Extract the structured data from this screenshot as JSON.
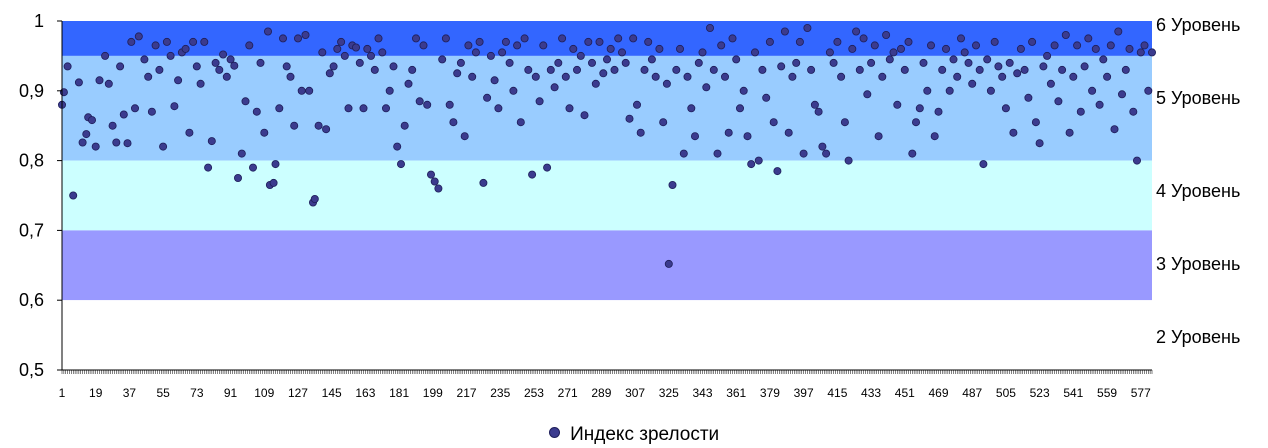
{
  "chart_data": {
    "type": "scatter",
    "title": "",
    "xlabel": "",
    "ylabel": "",
    "ylim": [
      0.5,
      1
    ],
    "xlim": [
      1,
      583
    ],
    "y_ticks": [
      "0,5",
      "0,6",
      "0,7",
      "0,8",
      "0,9",
      "1"
    ],
    "x_ticks": [
      "1",
      "19",
      "37",
      "55",
      "73",
      "91",
      "109",
      "127",
      "145",
      "163",
      "181",
      "199",
      "217",
      "235",
      "253",
      "271",
      "289",
      "307",
      "325",
      "343",
      "361",
      "379",
      "397",
      "415",
      "433",
      "451",
      "469",
      "487",
      "505",
      "523",
      "541",
      "559",
      "577"
    ],
    "bands": [
      {
        "label": "6 Уровень",
        "from": 0.95,
        "to": 1.0,
        "color": "#3366ff"
      },
      {
        "label": "5 Уровень",
        "from": 0.8,
        "to": 0.95,
        "color": "#99ccff"
      },
      {
        "label": "4 Уровень",
        "from": 0.7,
        "to": 0.8,
        "color": "#ccffff"
      },
      {
        "label": "3 Уровень",
        "from": 0.6,
        "to": 0.7,
        "color": "#9999ff"
      },
      {
        "label": "2 Уровень",
        "from": 0.5,
        "to": 0.6,
        "color": "#ffffff"
      }
    ],
    "grid": false,
    "legend_position": "bottom",
    "series": [
      {
        "name": "Индекс зрелости",
        "color": "#3b3b8e",
        "points": [
          [
            1,
            0.88
          ],
          [
            2,
            0.898
          ],
          [
            4,
            0.935
          ],
          [
            7,
            0.75
          ],
          [
            10,
            0.912
          ],
          [
            12,
            0.826
          ],
          [
            14,
            0.838
          ],
          [
            15,
            0.862
          ],
          [
            17,
            0.858
          ],
          [
            19,
            0.82
          ],
          [
            21,
            0.915
          ],
          [
            24,
            0.95
          ],
          [
            26,
            0.91
          ],
          [
            28,
            0.85
          ],
          [
            30,
            0.826
          ],
          [
            32,
            0.935
          ],
          [
            34,
            0.866
          ],
          [
            36,
            0.825
          ],
          [
            38,
            0.97
          ],
          [
            40,
            0.875
          ],
          [
            42,
            0.978
          ],
          [
            45,
            0.945
          ],
          [
            47,
            0.92
          ],
          [
            49,
            0.87
          ],
          [
            51,
            0.965
          ],
          [
            53,
            0.93
          ],
          [
            55,
            0.82
          ],
          [
            57,
            0.97
          ],
          [
            59,
            0.95
          ],
          [
            61,
            0.878
          ],
          [
            63,
            0.915
          ],
          [
            65,
            0.955
          ],
          [
            67,
            0.96
          ],
          [
            69,
            0.84
          ],
          [
            71,
            0.97
          ],
          [
            73,
            0.935
          ],
          [
            75,
            0.91
          ],
          [
            77,
            0.97
          ],
          [
            79,
            0.79
          ],
          [
            81,
            0.828
          ],
          [
            83,
            0.94
          ],
          [
            85,
            0.93
          ],
          [
            87,
            0.952
          ],
          [
            89,
            0.92
          ],
          [
            91,
            0.945
          ],
          [
            93,
            0.936
          ],
          [
            95,
            0.775
          ],
          [
            97,
            0.81
          ],
          [
            99,
            0.885
          ],
          [
            101,
            0.965
          ],
          [
            103,
            0.79
          ],
          [
            105,
            0.87
          ],
          [
            107,
            0.94
          ],
          [
            109,
            0.84
          ],
          [
            111,
            0.985
          ],
          [
            112,
            0.765
          ],
          [
            114,
            0.768
          ],
          [
            115,
            0.795
          ],
          [
            117,
            0.875
          ],
          [
            119,
            0.975
          ],
          [
            121,
            0.935
          ],
          [
            123,
            0.92
          ],
          [
            125,
            0.85
          ],
          [
            127,
            0.975
          ],
          [
            129,
            0.9
          ],
          [
            131,
            0.98
          ],
          [
            133,
            0.9
          ],
          [
            135,
            0.74
          ],
          [
            136,
            0.745
          ],
          [
            138,
            0.85
          ],
          [
            140,
            0.955
          ],
          [
            142,
            0.845
          ],
          [
            144,
            0.925
          ],
          [
            146,
            0.935
          ],
          [
            148,
            0.96
          ],
          [
            150,
            0.97
          ],
          [
            152,
            0.95
          ],
          [
            154,
            0.875
          ],
          [
            156,
            0.965
          ],
          [
            158,
            0.962
          ],
          [
            160,
            0.94
          ],
          [
            162,
            0.875
          ],
          [
            164,
            0.96
          ],
          [
            166,
            0.95
          ],
          [
            168,
            0.93
          ],
          [
            170,
            0.975
          ],
          [
            172,
            0.955
          ],
          [
            174,
            0.875
          ],
          [
            176,
            0.9
          ],
          [
            178,
            0.935
          ],
          [
            180,
            0.82
          ],
          [
            182,
            0.795
          ],
          [
            184,
            0.85
          ],
          [
            186,
            0.91
          ],
          [
            188,
            0.93
          ],
          [
            190,
            0.975
          ],
          [
            192,
            0.885
          ],
          [
            194,
            0.965
          ],
          [
            196,
            0.88
          ],
          [
            198,
            0.78
          ],
          [
            200,
            0.77
          ],
          [
            202,
            0.76
          ],
          [
            204,
            0.945
          ],
          [
            206,
            0.975
          ],
          [
            208,
            0.88
          ],
          [
            210,
            0.855
          ],
          [
            212,
            0.925
          ],
          [
            214,
            0.94
          ],
          [
            216,
            0.835
          ],
          [
            218,
            0.965
          ],
          [
            220,
            0.92
          ],
          [
            222,
            0.955
          ],
          [
            224,
            0.97
          ],
          [
            226,
            0.768
          ],
          [
            228,
            0.89
          ],
          [
            230,
            0.95
          ],
          [
            232,
            0.915
          ],
          [
            234,
            0.875
          ],
          [
            236,
            0.955
          ],
          [
            238,
            0.97
          ],
          [
            240,
            0.94
          ],
          [
            242,
            0.9
          ],
          [
            244,
            0.965
          ],
          [
            246,
            0.855
          ],
          [
            248,
            0.975
          ],
          [
            250,
            0.93
          ],
          [
            252,
            0.78
          ],
          [
            254,
            0.92
          ],
          [
            256,
            0.885
          ],
          [
            258,
            0.965
          ],
          [
            260,
            0.79
          ],
          [
            262,
            0.93
          ],
          [
            264,
            0.905
          ],
          [
            266,
            0.94
          ],
          [
            268,
            0.975
          ],
          [
            270,
            0.92
          ],
          [
            272,
            0.875
          ],
          [
            274,
            0.96
          ],
          [
            276,
            0.93
          ],
          [
            278,
            0.95
          ],
          [
            280,
            0.865
          ],
          [
            282,
            0.97
          ],
          [
            284,
            0.94
          ],
          [
            286,
            0.91
          ],
          [
            288,
            0.97
          ],
          [
            290,
            0.925
          ],
          [
            292,
            0.945
          ],
          [
            294,
            0.96
          ],
          [
            296,
            0.93
          ],
          [
            298,
            0.975
          ],
          [
            300,
            0.955
          ],
          [
            302,
            0.94
          ],
          [
            304,
            0.86
          ],
          [
            306,
            0.975
          ],
          [
            308,
            0.88
          ],
          [
            310,
            0.84
          ],
          [
            312,
            0.93
          ],
          [
            314,
            0.97
          ],
          [
            316,
            0.945
          ],
          [
            318,
            0.92
          ],
          [
            320,
            0.96
          ],
          [
            322,
            0.855
          ],
          [
            324,
            0.91
          ],
          [
            325,
            0.652
          ],
          [
            327,
            0.765
          ],
          [
            329,
            0.93
          ],
          [
            331,
            0.96
          ],
          [
            333,
            0.81
          ],
          [
            335,
            0.92
          ],
          [
            337,
            0.875
          ],
          [
            339,
            0.835
          ],
          [
            341,
            0.94
          ],
          [
            343,
            0.955
          ],
          [
            345,
            0.905
          ],
          [
            347,
            0.99
          ],
          [
            349,
            0.93
          ],
          [
            351,
            0.81
          ],
          [
            353,
            0.965
          ],
          [
            355,
            0.92
          ],
          [
            357,
            0.84
          ],
          [
            359,
            0.975
          ],
          [
            361,
            0.945
          ],
          [
            363,
            0.875
          ],
          [
            365,
            0.9
          ],
          [
            367,
            0.835
          ],
          [
            369,
            0.795
          ],
          [
            371,
            0.955
          ],
          [
            373,
            0.8
          ],
          [
            375,
            0.93
          ],
          [
            377,
            0.89
          ],
          [
            379,
            0.97
          ],
          [
            381,
            0.855
          ],
          [
            383,
            0.785
          ],
          [
            385,
            0.935
          ],
          [
            387,
            0.985
          ],
          [
            389,
            0.84
          ],
          [
            391,
            0.92
          ],
          [
            393,
            0.94
          ],
          [
            395,
            0.97
          ],
          [
            397,
            0.81
          ],
          [
            399,
            0.99
          ],
          [
            401,
            0.93
          ],
          [
            403,
            0.88
          ],
          [
            405,
            0.87
          ],
          [
            407,
            0.82
          ],
          [
            409,
            0.81
          ],
          [
            411,
            0.955
          ],
          [
            413,
            0.94
          ],
          [
            415,
            0.97
          ],
          [
            417,
            0.92
          ],
          [
            419,
            0.855
          ],
          [
            421,
            0.8
          ],
          [
            423,
            0.96
          ],
          [
            425,
            0.985
          ],
          [
            427,
            0.93
          ],
          [
            429,
            0.975
          ],
          [
            431,
            0.895
          ],
          [
            433,
            0.94
          ],
          [
            435,
            0.965
          ],
          [
            437,
            0.835
          ],
          [
            439,
            0.92
          ],
          [
            441,
            0.98
          ],
          [
            443,
            0.945
          ],
          [
            445,
            0.955
          ],
          [
            447,
            0.88
          ],
          [
            449,
            0.96
          ],
          [
            451,
            0.93
          ],
          [
            453,
            0.97
          ],
          [
            455,
            0.81
          ],
          [
            457,
            0.855
          ],
          [
            459,
            0.875
          ],
          [
            461,
            0.94
          ],
          [
            463,
            0.9
          ],
          [
            465,
            0.965
          ],
          [
            467,
            0.835
          ],
          [
            469,
            0.87
          ],
          [
            471,
            0.93
          ],
          [
            473,
            0.96
          ],
          [
            475,
            0.9
          ],
          [
            477,
            0.945
          ],
          [
            479,
            0.92
          ],
          [
            481,
            0.975
          ],
          [
            483,
            0.955
          ],
          [
            485,
            0.94
          ],
          [
            487,
            0.91
          ],
          [
            489,
            0.965
          ],
          [
            491,
            0.93
          ],
          [
            493,
            0.795
          ],
          [
            495,
            0.945
          ],
          [
            497,
            0.9
          ],
          [
            499,
            0.97
          ],
          [
            501,
            0.935
          ],
          [
            503,
            0.92
          ],
          [
            505,
            0.875
          ],
          [
            507,
            0.94
          ],
          [
            509,
            0.84
          ],
          [
            511,
            0.925
          ],
          [
            513,
            0.96
          ],
          [
            515,
            0.93
          ],
          [
            517,
            0.89
          ],
          [
            519,
            0.97
          ],
          [
            521,
            0.855
          ],
          [
            523,
            0.825
          ],
          [
            525,
            0.935
          ],
          [
            527,
            0.95
          ],
          [
            529,
            0.91
          ],
          [
            531,
            0.965
          ],
          [
            533,
            0.885
          ],
          [
            535,
            0.93
          ],
          [
            537,
            0.98
          ],
          [
            539,
            0.84
          ],
          [
            541,
            0.92
          ],
          [
            543,
            0.965
          ],
          [
            545,
            0.87
          ],
          [
            547,
            0.935
          ],
          [
            549,
            0.975
          ],
          [
            551,
            0.9
          ],
          [
            553,
            0.96
          ],
          [
            555,
            0.88
          ],
          [
            557,
            0.945
          ],
          [
            559,
            0.92
          ],
          [
            561,
            0.965
          ],
          [
            563,
            0.845
          ],
          [
            565,
            0.985
          ],
          [
            567,
            0.895
          ],
          [
            569,
            0.93
          ],
          [
            571,
            0.96
          ],
          [
            573,
            0.87
          ],
          [
            575,
            0.8
          ],
          [
            577,
            0.955
          ],
          [
            579,
            0.965
          ],
          [
            581,
            0.9
          ],
          [
            583,
            0.955
          ]
        ]
      }
    ]
  }
}
